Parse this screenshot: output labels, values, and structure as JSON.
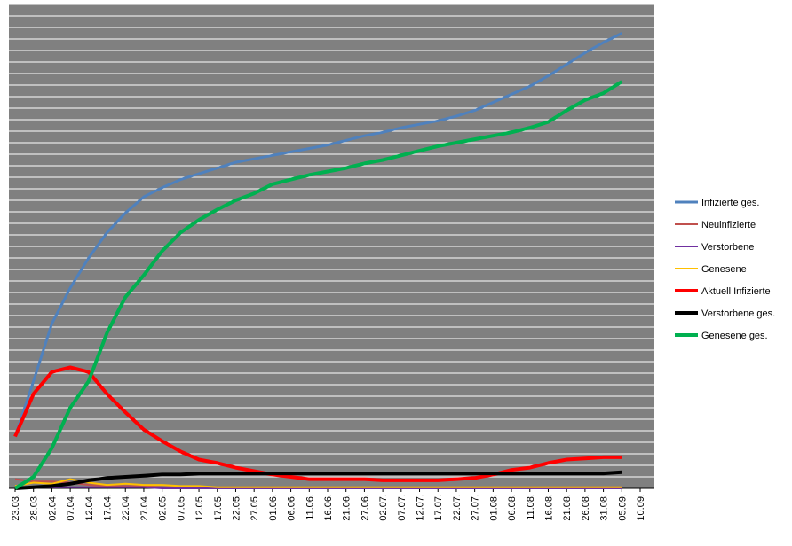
{
  "chart_data": {
    "type": "line",
    "categories": [
      "23.03.",
      "28.03.",
      "02.04.",
      "07.04.",
      "12.04.",
      "17.04.",
      "22.04.",
      "27.04.",
      "02.05.",
      "07.05.",
      "12.05.",
      "17.05.",
      "22.05.",
      "27.05.",
      "01.06.",
      "06.06.",
      "11.06.",
      "16.06.",
      "21.06.",
      "27.06.",
      "02.07.",
      "07.07.",
      "12.07.",
      "17.07.",
      "22.07.",
      "27.07.",
      "01.08.",
      "06.08.",
      "11.08.",
      "16.08.",
      "21.08.",
      "26.08.",
      "31.08.",
      "05.09.",
      "10.09."
    ],
    "series": [
      {
        "name": "Infizierte ges.",
        "color": "#4f81bd",
        "values": [
          4.5,
          9.3,
          14.3,
          17.4,
          20,
          22.2,
          23.9,
          25.3,
          26.1,
          26.8,
          27.3,
          27.8,
          28.3,
          28.6,
          28.9,
          29.2,
          29.5,
          29.8,
          30.2,
          30.6,
          30.9,
          31.3,
          31.6,
          31.9,
          32.3,
          32.8,
          33.5,
          34.2,
          34.9,
          35.8,
          36.8,
          37.8,
          38.7,
          39.5,
          null
        ]
      },
      {
        "name": "Neuinfizierte",
        "color": "#c0504d",
        "values": [
          0.8,
          0.6,
          0.6,
          0.5,
          0.3,
          0.2,
          0.2,
          0.2,
          0.1,
          0.1,
          0.1,
          0.1,
          0.1,
          0.1,
          0.1,
          0.1,
          0.1,
          0.1,
          0.1,
          0.1,
          0.1,
          0.1,
          0.1,
          0.1,
          0.1,
          0.1,
          0.1,
          0.1,
          0.1,
          0.1,
          0.1,
          0.1,
          0.1,
          0.1,
          null
        ]
      },
      {
        "name": "Verstorbene",
        "color": "#7030a0",
        "values": [
          0,
          0.1,
          0.1,
          0.1,
          0.1,
          0.1,
          0.1,
          0.1,
          0,
          0,
          0,
          0,
          0,
          0,
          0,
          0,
          0,
          0,
          0,
          0,
          0,
          0,
          0,
          0,
          0,
          0,
          0,
          0,
          0,
          0,
          0,
          0,
          0,
          0,
          null
        ]
      },
      {
        "name": "Genesene",
        "color": "#ffc000",
        "values": [
          0.2,
          0.5,
          0.4,
          0.8,
          0.5,
          0.3,
          0.4,
          0.3,
          0.3,
          0.2,
          0.2,
          0.1,
          0.1,
          0.1,
          0.1,
          0.1,
          0.1,
          0.1,
          0.1,
          0.1,
          0.1,
          0.1,
          0.1,
          0.1,
          0.1,
          0.1,
          0.1,
          0.1,
          0.1,
          0.1,
          0.1,
          0.1,
          0.1,
          0.1,
          null
        ]
      },
      {
        "name": "Aktuell Infizierte",
        "color": "#ff0000",
        "values": [
          4.5,
          8.2,
          10.1,
          10.5,
          10.1,
          8.2,
          6.6,
          5.1,
          4.1,
          3.2,
          2.5,
          2.2,
          1.8,
          1.5,
          1.2,
          1,
          0.8,
          0.8,
          0.8,
          0.8,
          0.7,
          0.7,
          0.7,
          0.7,
          0.8,
          0.9,
          1.2,
          1.6,
          1.8,
          2.2,
          2.5,
          2.6,
          2.7,
          2.7,
          null
        ]
      },
      {
        "name": "Verstorbene ges.",
        "color": "#000000",
        "values": [
          0,
          0.1,
          0.2,
          0.4,
          0.7,
          0.9,
          1,
          1.1,
          1.2,
          1.2,
          1.3,
          1.3,
          1.3,
          1.3,
          1.3,
          1.3,
          1.3,
          1.3,
          1.3,
          1.3,
          1.3,
          1.3,
          1.3,
          1.3,
          1.3,
          1.3,
          1.3,
          1.3,
          1.3,
          1.3,
          1.3,
          1.3,
          1.3,
          1.4,
          null
        ]
      },
      {
        "name": "Genesene ges.",
        "color": "#00b050",
        "values": [
          0,
          1,
          3.5,
          7,
          9.3,
          13.5,
          16.6,
          18.5,
          20.6,
          22.2,
          23.3,
          24.2,
          25,
          25.6,
          26.4,
          26.8,
          27.2,
          27.5,
          27.8,
          28.2,
          28.5,
          28.9,
          29.3,
          29.7,
          30,
          30.3,
          30.6,
          30.9,
          31.3,
          31.8,
          32.8,
          33.7,
          34.3,
          35.3,
          null
        ]
      }
    ],
    "ylim": [
      0,
      42
    ],
    "yticks": [
      0,
      1,
      2,
      3,
      4,
      5,
      6,
      7,
      8,
      9,
      10,
      11,
      12,
      13,
      14,
      15,
      16,
      17,
      18,
      19,
      20,
      21,
      22,
      23,
      24,
      25,
      26,
      27,
      28,
      29,
      30,
      31,
      32,
      33,
      34,
      35,
      36,
      37,
      38,
      39,
      40,
      41,
      42
    ],
    "grid": true,
    "legend": "right",
    "background": "#808080"
  }
}
